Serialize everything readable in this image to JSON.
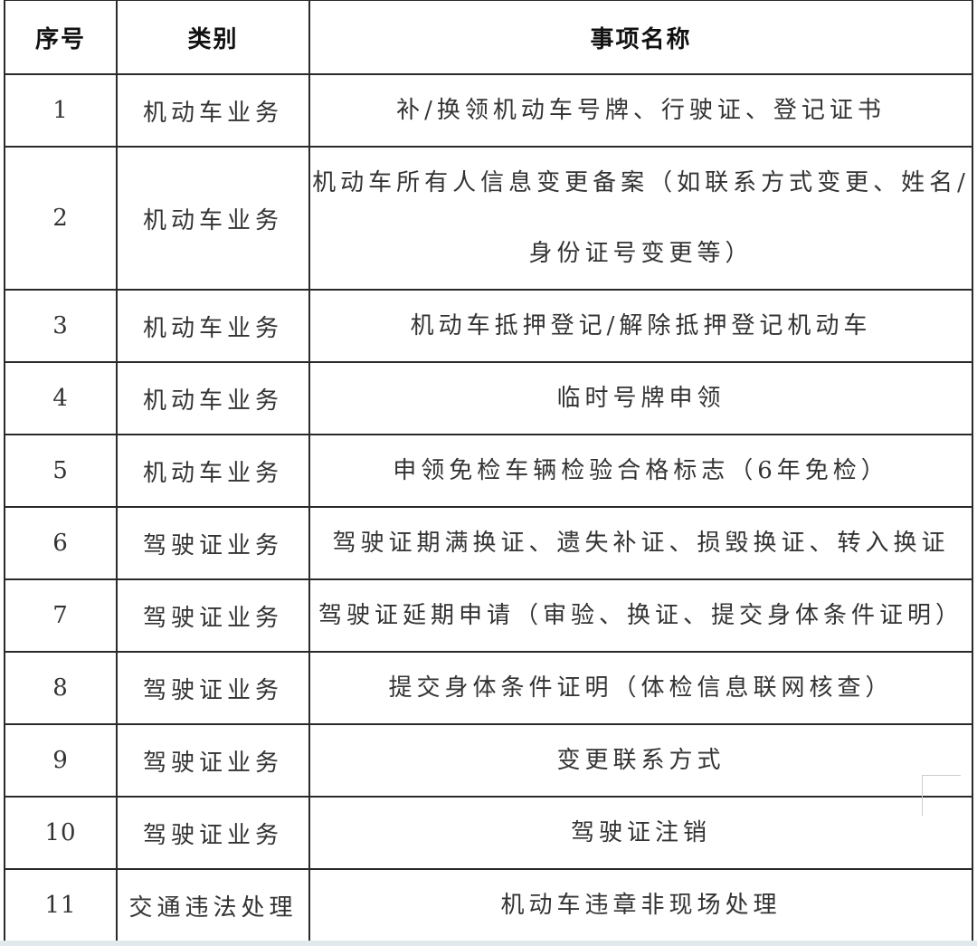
{
  "table": {
    "headers": {
      "index": "序号",
      "category": "类别",
      "item": "事项名称"
    },
    "rows": [
      {
        "index": "1",
        "category": "机动车业务",
        "name": "补/换领机动车号牌、行驶证、登记证书"
      },
      {
        "index": "2",
        "category": "机动车业务",
        "name": "机动车所有人信息变更备案（如联系方式变更、姓名/\n身份证号变更等）"
      },
      {
        "index": "3",
        "category": "机动车业务",
        "name": "机动车抵押登记/解除抵押登记机动车"
      },
      {
        "index": "4",
        "category": "机动车业务",
        "name": "临时号牌申领"
      },
      {
        "index": "5",
        "category": "机动车业务",
        "name": "申领免检车辆检验合格标志（6年免检）"
      },
      {
        "index": "6",
        "category": "驾驶证业务",
        "name": "驾驶证期满换证、遗失补证、损毁换证、转入换证"
      },
      {
        "index": "7",
        "category": "驾驶证业务",
        "name": "驾驶证延期申请（审验、换证、提交身体条件证明）"
      },
      {
        "index": "8",
        "category": "驾驶证业务",
        "name": "提交身体条件证明（体检信息联网核查）"
      },
      {
        "index": "9",
        "category": "驾驶证业务",
        "name": "变更联系方式"
      },
      {
        "index": "10",
        "category": "驾驶证业务",
        "name": "驾驶证注销"
      },
      {
        "index": "11",
        "category": "交通违法处理",
        "name": "机动车违章非现场处理"
      }
    ]
  }
}
